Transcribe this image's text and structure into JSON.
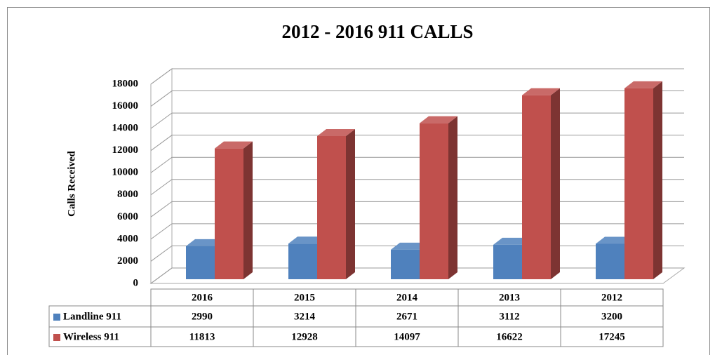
{
  "chart_data": {
    "type": "bar3d",
    "title": "2012 - 2016    911 CALLS",
    "y_label": "Calls Received",
    "categories": [
      "2016",
      "2015",
      "2014",
      "2013",
      "2012"
    ],
    "series": [
      {
        "name": "Landline 911",
        "color": "#4f81bd",
        "values": [
          2990,
          3214,
          2671,
          3112,
          3200
        ]
      },
      {
        "name": "Wireless 911",
        "color": "#c0504d",
        "values": [
          11813,
          12928,
          14097,
          16622,
          17245
        ]
      }
    ],
    "ylim": [
      0,
      18000
    ],
    "yticks": [
      0,
      2000,
      4000,
      6000,
      8000,
      10000,
      12000,
      14000,
      16000,
      18000
    ],
    "grid": true,
    "data_table": true
  }
}
